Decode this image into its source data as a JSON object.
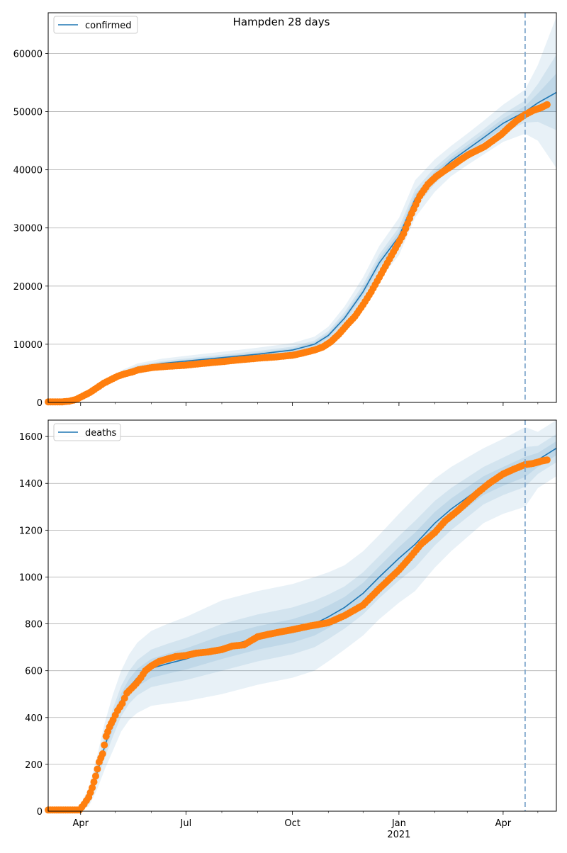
{
  "title": "Hampden 28 days",
  "colors": {
    "model": "#1f77b4",
    "observed": "#ff7f0e",
    "band": "#1f77b4",
    "grid": "#b0b0b0",
    "vline": "#7fa7cc"
  },
  "x_axis": {
    "ticks": [
      {
        "label": "Apr",
        "date": "2020-04-01"
      },
      {
        "label": "Jul",
        "date": "2020-07-01"
      },
      {
        "label": "Oct",
        "date": "2020-10-01"
      },
      {
        "label": "Jan",
        "date": "2021-01-01"
      },
      {
        "label": "Apr",
        "date": "2021-04-01"
      }
    ],
    "year_label": "2021",
    "year_label_under": "2021-01-01",
    "xlim": [
      "2020-03-04",
      "2021-05-17"
    ],
    "forecast_start": "2021-04-20"
  },
  "chart_data": [
    {
      "type": "line",
      "panel": "top",
      "legend": "confirmed",
      "legend_position": "top-left",
      "grid": "horizontal",
      "ylim": [
        0,
        67000
      ],
      "yticks": [
        0,
        10000,
        20000,
        30000,
        40000,
        50000,
        60000
      ],
      "model": {
        "name": "confirmed",
        "dates": [
          "2020-03-04",
          "2020-03-25",
          "2020-04-08",
          "2020-04-22",
          "2020-05-06",
          "2020-05-20",
          "2020-06-10",
          "2020-07-01",
          "2020-08-01",
          "2020-09-01",
          "2020-10-01",
          "2020-10-20",
          "2020-11-01",
          "2020-11-15",
          "2020-12-01",
          "2020-12-15",
          "2021-01-01",
          "2021-01-15",
          "2021-02-01",
          "2021-02-15",
          "2021-03-01",
          "2021-03-15",
          "2021-04-01",
          "2021-04-20",
          "2021-05-01",
          "2021-05-17"
        ],
        "values": [
          0,
          200,
          1500,
          3500,
          5000,
          6000,
          6700,
          7100,
          7700,
          8300,
          9000,
          10000,
          11500,
          14500,
          19000,
          24000,
          28500,
          35000,
          39000,
          41500,
          43500,
          45500,
          48000,
          50000,
          51500,
          53300
        ],
        "band_offsets": [
          [
            0,
            0,
            100,
            300,
            500,
            700,
            800,
            900,
            1000,
            1100,
            1200,
            1300,
            1500,
            2000,
            2500,
            2900,
            3200,
            3200,
            2800,
            2600,
            2700,
            2900,
            3200,
            3800,
            6500,
            13000
          ],
          [
            0,
            0,
            50,
            150,
            250,
            350,
            400,
            450,
            500,
            550,
            600,
            650,
            750,
            1000,
            1250,
            1450,
            1600,
            1600,
            1400,
            1300,
            1350,
            1450,
            1600,
            1900,
            3250,
            6500
          ],
          [
            0,
            0,
            25,
            75,
            125,
            175,
            200,
            225,
            250,
            275,
            300,
            325,
            375,
            500,
            625,
            725,
            800,
            800,
            700,
            650,
            675,
            725,
            800,
            950,
            1625,
            3250
          ]
        ]
      },
      "observed": {
        "name": "confirmed",
        "dates": [
          "2020-03-04",
          "2020-03-10",
          "2020-03-16",
          "2020-03-22",
          "2020-03-28",
          "2020-04-03",
          "2020-04-09",
          "2020-04-15",
          "2020-04-21",
          "2020-04-27",
          "2020-05-03",
          "2020-05-09",
          "2020-05-15",
          "2020-05-21",
          "2020-05-27",
          "2020-06-02",
          "2020-06-15",
          "2020-07-01",
          "2020-07-15",
          "2020-08-01",
          "2020-08-15",
          "2020-09-01",
          "2020-09-15",
          "2020-10-01",
          "2020-10-10",
          "2020-10-20",
          "2020-10-27",
          "2020-11-03",
          "2020-11-10",
          "2020-11-17",
          "2020-11-24",
          "2020-12-01",
          "2020-12-08",
          "2020-12-15",
          "2020-12-22",
          "2020-12-29",
          "2021-01-05",
          "2021-01-12",
          "2021-01-19",
          "2021-01-26",
          "2021-02-02",
          "2021-02-09",
          "2021-02-16",
          "2021-02-23",
          "2021-03-02",
          "2021-03-09",
          "2021-03-16",
          "2021-03-23",
          "2021-03-30",
          "2021-04-06",
          "2021-04-13",
          "2021-04-20",
          "2021-04-27",
          "2021-05-04",
          "2021-05-09"
        ],
        "values": [
          100,
          100,
          100,
          200,
          500,
          1100,
          1700,
          2500,
          3300,
          3900,
          4500,
          4900,
          5200,
          5600,
          5800,
          6000,
          6200,
          6400,
          6700,
          7000,
          7300,
          7600,
          7800,
          8100,
          8500,
          9000,
          9500,
          10400,
          11700,
          13300,
          14800,
          16800,
          19000,
          21500,
          24000,
          26500,
          29000,
          32500,
          35500,
          37500,
          38800,
          39800,
          40700,
          41700,
          42600,
          43300,
          44000,
          45000,
          46000,
          47300,
          48500,
          49500,
          50200,
          50700,
          51200
        ]
      }
    },
    {
      "type": "line",
      "panel": "bottom",
      "legend": "deaths",
      "legend_position": "top-left",
      "grid": "horizontal",
      "ylim": [
        0,
        1670
      ],
      "yticks": [
        0,
        200,
        400,
        600,
        800,
        1000,
        1200,
        1400,
        1600
      ],
      "model": {
        "name": "deaths",
        "dates": [
          "2020-03-04",
          "2020-03-29",
          "2020-04-08",
          "2020-04-15",
          "2020-04-22",
          "2020-04-29",
          "2020-05-06",
          "2020-05-13",
          "2020-05-20",
          "2020-06-01",
          "2020-06-15",
          "2020-07-01",
          "2020-08-01",
          "2020-09-01",
          "2020-10-01",
          "2020-10-20",
          "2020-11-01",
          "2020-11-15",
          "2020-12-01",
          "2020-12-15",
          "2021-01-01",
          "2021-01-15",
          "2021-02-01",
          "2021-02-15",
          "2021-03-01",
          "2021-03-15",
          "2021-04-01",
          "2021-04-20",
          "2021-05-01",
          "2021-05-17"
        ],
        "values": [
          0,
          0,
          60,
          160,
          280,
          380,
          470,
          530,
          570,
          610,
          630,
          650,
          700,
          740,
          770,
          800,
          830,
          870,
          930,
          1000,
          1080,
          1140,
          1230,
          1290,
          1340,
          1390,
          1430,
          1470,
          1500,
          1550
        ],
        "band_offsets": [
          [
            0,
            0,
            40,
            70,
            100,
            120,
            130,
            140,
            150,
            160,
            170,
            180,
            200,
            200,
            200,
            200,
            190,
            180,
            180,
            180,
            190,
            200,
            190,
            180,
            170,
            160,
            160,
            170,
            120,
            120
          ],
          [
            0,
            0,
            20,
            35,
            50,
            60,
            65,
            70,
            75,
            80,
            85,
            90,
            100,
            100,
            100,
            100,
            95,
            90,
            90,
            90,
            95,
            100,
            95,
            90,
            85,
            80,
            80,
            85,
            60,
            60
          ],
          [
            0,
            0,
            10,
            18,
            25,
            30,
            33,
            35,
            38,
            40,
            43,
            45,
            50,
            50,
            50,
            50,
            48,
            45,
            45,
            45,
            48,
            50,
            48,
            45,
            43,
            40,
            40,
            43,
            30,
            30
          ]
        ]
      },
      "observed": {
        "name": "deaths",
        "dates": [
          "2020-03-04",
          "2020-03-15",
          "2020-03-25",
          "2020-03-31",
          "2020-04-04",
          "2020-04-08",
          "2020-04-11",
          "2020-04-14",
          "2020-04-17",
          "2020-04-20",
          "2020-04-23",
          "2020-04-26",
          "2020-04-29",
          "2020-05-03",
          "2020-05-07",
          "2020-05-11",
          "2020-05-15",
          "2020-05-19",
          "2020-05-23",
          "2020-05-27",
          "2020-06-01",
          "2020-06-08",
          "2020-06-15",
          "2020-06-22",
          "2020-07-01",
          "2020-07-10",
          "2020-07-20",
          "2020-08-01",
          "2020-08-10",
          "2020-08-20",
          "2020-09-01",
          "2020-09-10",
          "2020-09-20",
          "2020-10-01",
          "2020-10-15",
          "2020-11-01",
          "2020-11-15",
          "2020-12-01",
          "2020-12-15",
          "2021-01-01",
          "2021-01-10",
          "2021-01-20",
          "2021-02-01",
          "2021-02-10",
          "2021-02-20",
          "2021-03-01",
          "2021-03-10",
          "2021-03-20",
          "2021-04-01",
          "2021-04-10",
          "2021-04-20",
          "2021-04-27",
          "2021-05-04",
          "2021-05-09"
        ],
        "values": [
          5,
          5,
          5,
          5,
          30,
          60,
          100,
          150,
          210,
          245,
          320,
          360,
          390,
          430,
          460,
          505,
          525,
          545,
          570,
          600,
          620,
          640,
          650,
          660,
          665,
          675,
          680,
          690,
          705,
          710,
          745,
          755,
          765,
          775,
          790,
          805,
          835,
          880,
          950,
          1030,
          1080,
          1140,
          1190,
          1240,
          1280,
          1320,
          1360,
          1400,
          1440,
          1460,
          1480,
          1485,
          1495,
          1500
        ]
      }
    }
  ]
}
